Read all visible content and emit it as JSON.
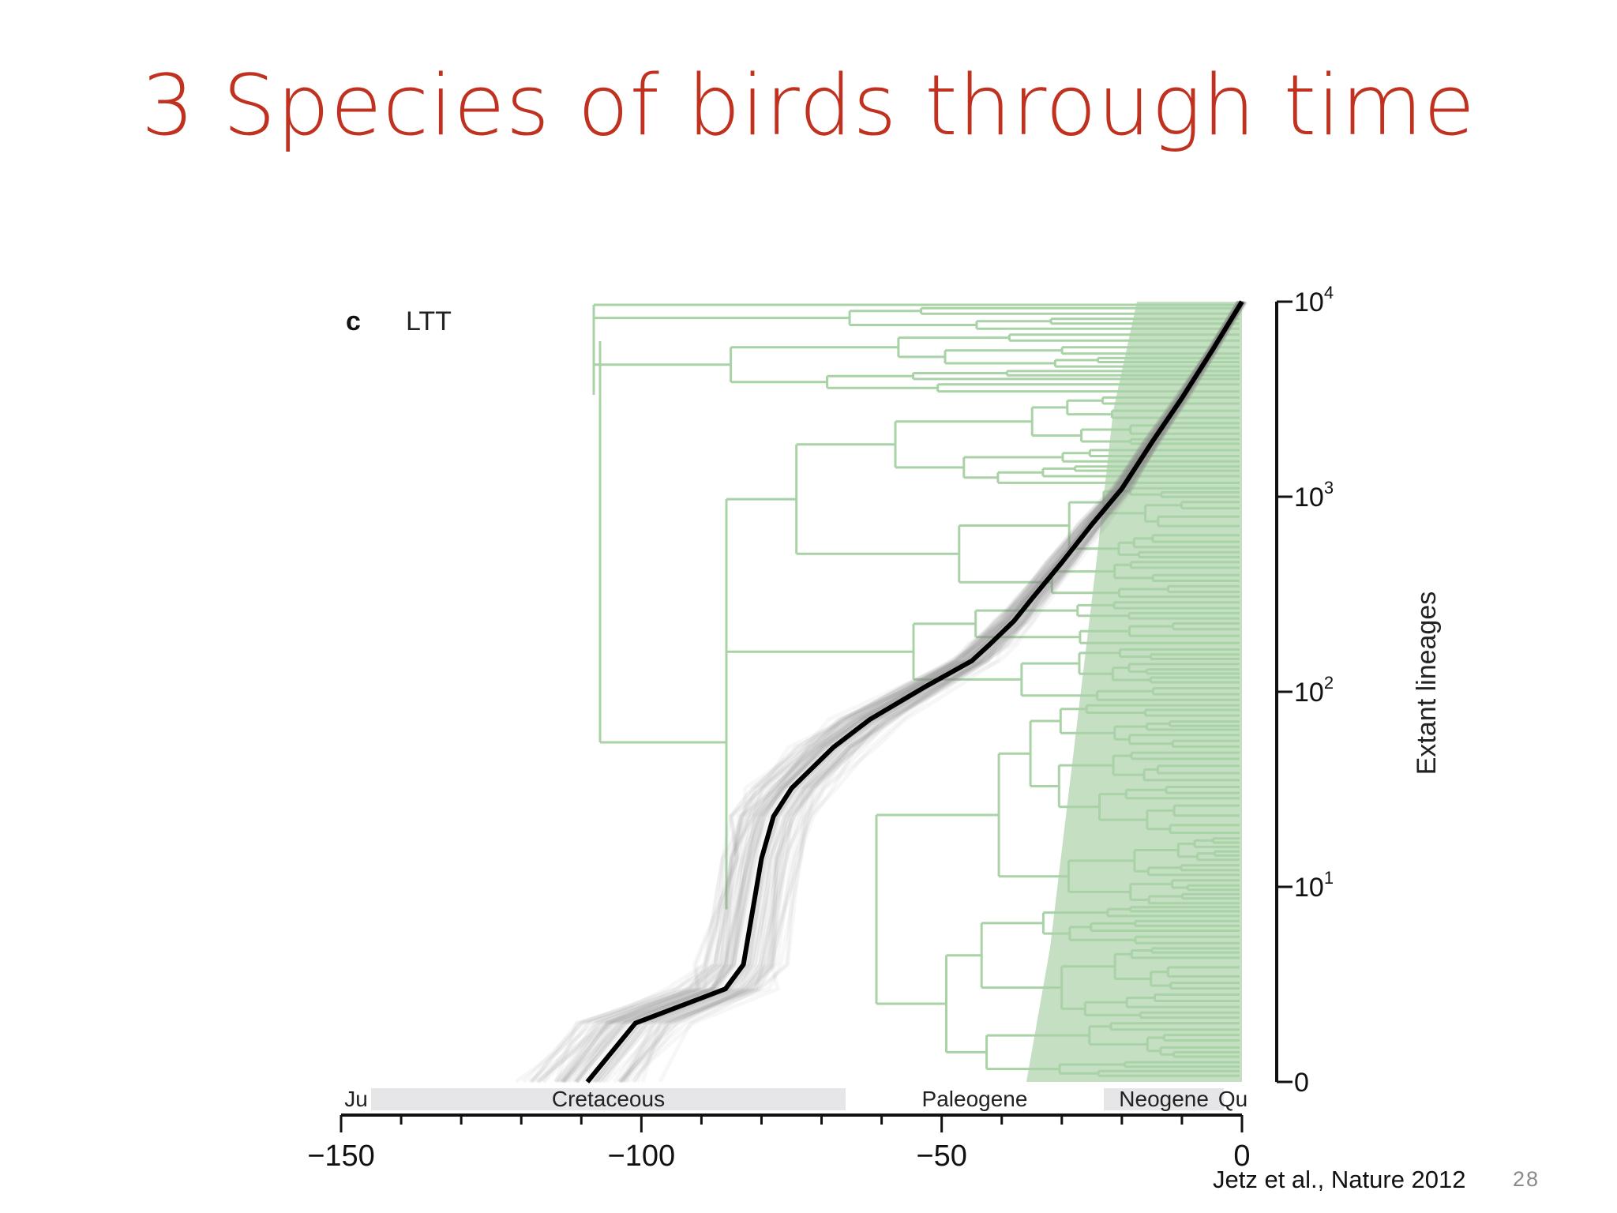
{
  "slide": {
    "title": "3 Species of birds through time",
    "citation": "Jetz et al., Nature 2012",
    "page_number": "28"
  },
  "chart_data": {
    "type": "line",
    "panel_label": "c",
    "title": "LTT",
    "xlabel": "",
    "ylabel": "Extant lineages",
    "y_scale": "log",
    "xlim": [
      -150,
      0
    ],
    "ylim": [
      1,
      10000
    ],
    "x_ticks": [
      -150,
      -100,
      -50,
      0
    ],
    "y_ticks": [
      {
        "value": 1,
        "base": "",
        "exp": "0"
      },
      {
        "value": 10,
        "base": "10",
        "exp": "1"
      },
      {
        "value": 100,
        "base": "10",
        "exp": "2"
      },
      {
        "value": 1000,
        "base": "10",
        "exp": "3"
      },
      {
        "value": 10000,
        "base": "10",
        "exp": "4"
      }
    ],
    "periods": [
      {
        "label": "Ju",
        "start": -150,
        "end": -145,
        "shaded": false
      },
      {
        "label": "Cretaceous",
        "start": -145,
        "end": -66,
        "shaded": true
      },
      {
        "label": "Paleogene",
        "start": -66,
        "end": -23,
        "shaded": false
      },
      {
        "label": "Neogene",
        "start": -23,
        "end": -3,
        "shaded": true
      },
      {
        "label": "Qu",
        "start": -3,
        "end": 0,
        "shaded": false
      }
    ],
    "series": [
      {
        "name": "",
        "color": "#000000",
        "x": [
          -109,
          -101,
          -86,
          -83,
          -80,
          -78,
          -75,
          -68,
          -62,
          -53,
          -45,
          -42,
          -38,
          -35,
          -30,
          -25,
          -20,
          -15,
          -10,
          -5,
          0
        ],
        "y": [
          1,
          2,
          3,
          4,
          14,
          23,
          32,
          52,
          72,
          105,
          144,
          175,
          230,
          300,
          460,
          720,
          1100,
          1900,
          3200,
          5600,
          10000
        ]
      }
    ],
    "colors": {
      "tree": "#a9d2a6",
      "tree_fill": "#bfdcbb",
      "uncertainty": "#8f8f93",
      "period_shade": "#e6e6e8"
    }
  }
}
